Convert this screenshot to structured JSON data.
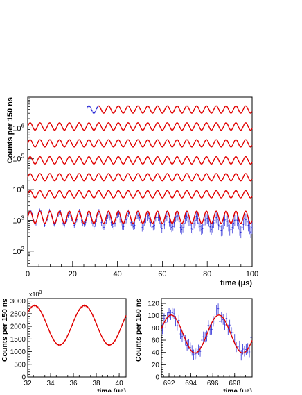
{
  "colors": {
    "fit": "#e00000",
    "data": "#2b2bd6",
    "axis": "#000000",
    "background": "#ffffff"
  },
  "chart_data": [
    {
      "type": "line",
      "panel": "main",
      "xlabel": "time (μs)",
      "ylabel": "Counts per 150 ns",
      "xlim": [
        0,
        100
      ],
      "ylim_log10": [
        1.5,
        7.0
      ],
      "log_y": true,
      "x_ticks": [
        0,
        20,
        40,
        60,
        80,
        100
      ],
      "x_tick_labels": [
        "0",
        "20",
        "40",
        "60",
        "80",
        "100"
      ],
      "y_ticks": [
        100,
        1000,
        10000,
        100000,
        1000000
      ],
      "y_tick_labels": [
        "10^2",
        "10^3",
        "10^4",
        "10^5",
        "10^6"
      ],
      "period_us": 4.365,
      "series": [
        {
          "x_range": [
            31.5,
            100
          ],
          "baseline_log10": 6.6,
          "amplitude_log10": 0.12,
          "style": "fit"
        },
        {
          "x_range": [
            0,
            100
          ],
          "baseline_log10": 6.05,
          "amplitude_log10": 0.12,
          "style": "fit"
        },
        {
          "x_range": [
            0,
            100
          ],
          "baseline_log10": 5.5,
          "amplitude_log10": 0.12,
          "style": "fit"
        },
        {
          "x_range": [
            0,
            100
          ],
          "baseline_log10": 4.95,
          "amplitude_log10": 0.12,
          "style": "fit"
        },
        {
          "x_range": [
            0,
            100
          ],
          "baseline_log10": 4.4,
          "amplitude_log10": 0.12,
          "style": "fit"
        },
        {
          "x_range": [
            0,
            100
          ],
          "baseline_log10": 3.85,
          "amplitude_log10": 0.12,
          "style": "fit"
        },
        {
          "x_range": [
            0,
            100
          ],
          "baseline_log10": 3.1,
          "amplitude_log10": 0.2,
          "style": "fit+data"
        }
      ],
      "data_fragment": {
        "x_range": [
          26.5,
          31.5
        ],
        "baseline_log10": 6.6,
        "amplitude_log10": 0.12
      }
    },
    {
      "type": "line",
      "panel": "zoom-early",
      "xlabel": "time (μs)",
      "ylabel": "Counts per 150 ns",
      "scale_label": "x10^3",
      "xlim": [
        32,
        40.6
      ],
      "ylim": [
        0,
        3100
      ],
      "x_ticks": [
        32,
        34,
        36,
        38,
        40
      ],
      "x_tick_labels": [
        "32",
        "34",
        "36",
        "38",
        "40"
      ],
      "y_ticks": [
        0,
        500,
        1000,
        1500,
        2000,
        2500,
        3000
      ],
      "y_tick_labels": [
        "0",
        "500",
        "1000",
        "1500",
        "2000",
        "2500",
        "3000"
      ],
      "fit": {
        "baseline": 2040,
        "amplitude": 780,
        "period_us": 4.365,
        "peak_x": 32.6
      }
    },
    {
      "type": "line",
      "panel": "zoom-late",
      "xlabel": "time (μs)",
      "ylabel": "Counts per 150 ns",
      "xlim": [
        691.3,
        699.6
      ],
      "ylim": [
        0,
        128
      ],
      "x_ticks": [
        692,
        694,
        696,
        698
      ],
      "x_tick_labels": [
        "692",
        "694",
        "696",
        "698"
      ],
      "y_ticks": [
        0,
        20,
        40,
        60,
        80,
        100,
        120
      ],
      "y_tick_labels": [
        "0",
        "20",
        "40",
        "60",
        "80",
        "100",
        "120"
      ],
      "fit": {
        "baseline": 70,
        "amplitude": 31,
        "period_us": 4.365,
        "peak_x": 692.2
      }
    }
  ]
}
